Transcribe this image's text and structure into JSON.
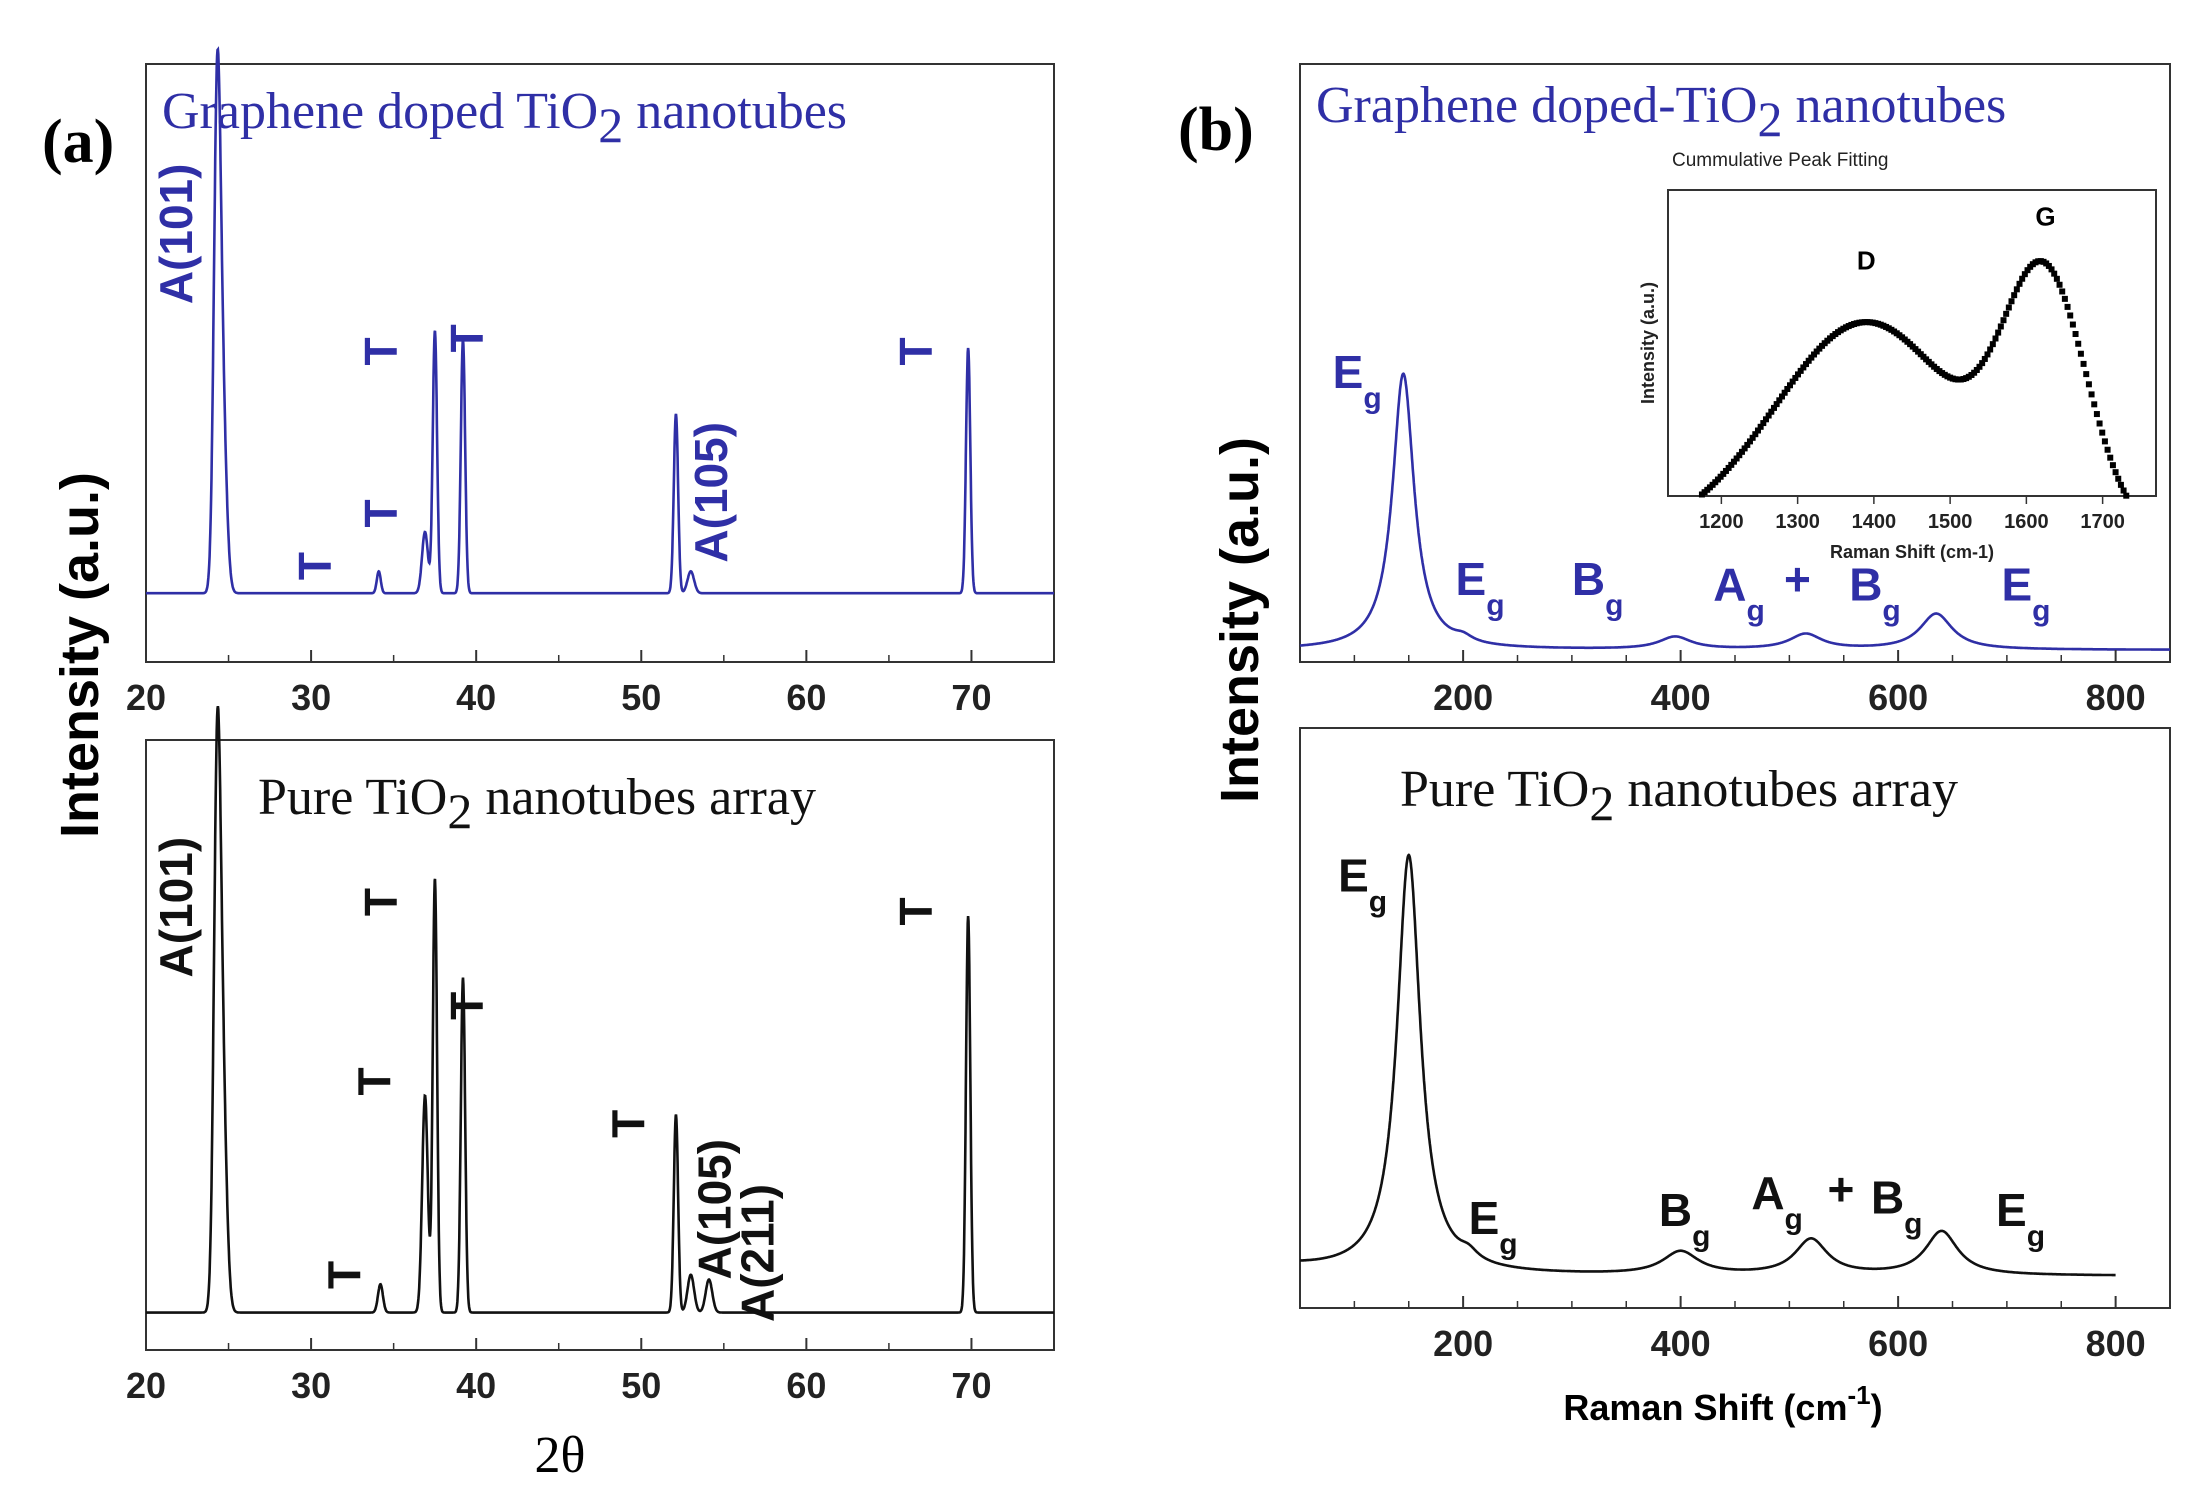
{
  "figure": {
    "panel_a_label": "(a)",
    "panel_b_label": "(b)"
  },
  "chart_data": [
    {
      "id": "a_top",
      "type": "line",
      "title": "Graphene doped TiO2 nanotubes",
      "title_main": "Graphene doped TiO",
      "title_sub": "2",
      "title_tail": " nanotubes",
      "color": "#2f2fa6",
      "xlabel": "",
      "ylabel": "Intensity (a.u.)",
      "xlim": [
        20,
        75
      ],
      "x_ticks": [
        20,
        30,
        40,
        50,
        60,
        70
      ],
      "baseline": 0.02,
      "peaks": [
        {
          "x": 24.3,
          "h": 1.0,
          "w": 0.2
        },
        {
          "x": 24.6,
          "h": 0.45,
          "w": 0.25
        },
        {
          "x": 34.1,
          "h": 0.05,
          "w": 0.12
        },
        {
          "x": 36.9,
          "h": 0.14,
          "w": 0.18
        },
        {
          "x": 37.5,
          "h": 0.6,
          "w": 0.13
        },
        {
          "x": 39.2,
          "h": 0.58,
          "w": 0.13
        },
        {
          "x": 52.1,
          "h": 0.41,
          "w": 0.13
        },
        {
          "x": 53.0,
          "h": 0.05,
          "w": 0.2
        },
        {
          "x": 69.8,
          "h": 0.56,
          "w": 0.13
        }
      ],
      "annotations": [
        {
          "text": "A(101)",
          "x": 22.8,
          "y": 0.68,
          "rot": true
        },
        {
          "text": "T",
          "x": 31.2,
          "y": 0.05,
          "rot": true
        },
        {
          "text": "T",
          "x": 35.2,
          "y": 0.17,
          "rot": true
        },
        {
          "text": "T",
          "x": 35.2,
          "y": 0.54,
          "rot": true
        },
        {
          "text": "T",
          "x": 40.4,
          "y": 0.57,
          "rot": true
        },
        {
          "text": "A(105)",
          "x": 55.2,
          "y": 0.09,
          "rot": true
        },
        {
          "text": "T",
          "x": 67.6,
          "y": 0.54,
          "rot": true
        }
      ]
    },
    {
      "id": "a_bottom",
      "type": "line",
      "title": "Pure TiO2 nanotubes array",
      "title_main": "Pure TiO",
      "title_sub": "2",
      "title_tail": " nanotubes array",
      "color": "#111111",
      "xlabel": "2θ",
      "ylabel": "Intensity (a.u.)",
      "xlim": [
        20,
        75
      ],
      "x_ticks": [
        20,
        30,
        40,
        50,
        60,
        70
      ],
      "baseline": 0.02,
      "peaks": [
        {
          "x": 24.3,
          "h": 1.0,
          "w": 0.2
        },
        {
          "x": 24.6,
          "h": 0.52,
          "w": 0.25
        },
        {
          "x": 34.2,
          "h": 0.06,
          "w": 0.15
        },
        {
          "x": 36.9,
          "h": 0.46,
          "w": 0.17
        },
        {
          "x": 37.5,
          "h": 0.92,
          "w": 0.13
        },
        {
          "x": 39.2,
          "h": 0.71,
          "w": 0.13
        },
        {
          "x": 52.1,
          "h": 0.42,
          "w": 0.13
        },
        {
          "x": 53.0,
          "h": 0.08,
          "w": 0.2
        },
        {
          "x": 54.1,
          "h": 0.07,
          "w": 0.2
        },
        {
          "x": 69.8,
          "h": 0.84,
          "w": 0.13
        }
      ],
      "annotations": [
        {
          "text": "A(101)",
          "x": 22.8,
          "y": 0.73,
          "rot": true
        },
        {
          "text": "T",
          "x": 33.0,
          "y": 0.07,
          "rot": true
        },
        {
          "text": "T",
          "x": 34.8,
          "y": 0.48,
          "rot": true
        },
        {
          "text": "T",
          "x": 35.2,
          "y": 0.86,
          "rot": true
        },
        {
          "text": "T",
          "x": 40.4,
          "y": 0.64,
          "rot": true
        },
        {
          "text": "T",
          "x": 50.2,
          "y": 0.39,
          "rot": true
        },
        {
          "text": "A(105)",
          "x": 55.4,
          "y": 0.09,
          "rot": true
        },
        {
          "text": "A(211)",
          "x": 58.0,
          "y": 0.0,
          "rot": true
        },
        {
          "text": "T",
          "x": 67.6,
          "y": 0.84,
          "rot": true
        }
      ]
    },
    {
      "id": "b_top",
      "type": "line",
      "title": "Graphene doped-TiO2 nanotubes",
      "title_main": "Graphene doped-TiO",
      "title_sub": "2",
      "title_tail": " nanotubes",
      "color": "#2f2fa6",
      "xlabel": "",
      "ylabel": "Intensity (a.u.)",
      "xlim": [
        50,
        850
      ],
      "x_ticks": [
        200,
        400,
        600,
        800
      ],
      "baseline": 0.0,
      "lorentz": [
        {
          "x": 145,
          "h": 1.0,
          "w": 12
        },
        {
          "x": 200,
          "h": 0.02,
          "w": 10
        },
        {
          "x": 395,
          "h": 0.045,
          "w": 18
        },
        {
          "x": 515,
          "h": 0.055,
          "w": 18
        },
        {
          "x": 635,
          "h": 0.13,
          "w": 18
        }
      ],
      "annotations": [
        {
          "text": "E",
          "sub": "g",
          "x": 80,
          "y": 0.95
        },
        {
          "text": "E",
          "sub": "g",
          "x": 193,
          "y": 0.2
        },
        {
          "text": "B",
          "sub": "g",
          "x": 300,
          "y": 0.2
        },
        {
          "text": "A",
          "sub": "g",
          "x": 430,
          "y": 0.18
        },
        {
          "text": "+",
          "sub": "",
          "x": 495,
          "y": 0.2
        },
        {
          "text": "B",
          "sub": "g",
          "x": 555,
          "y": 0.18
        },
        {
          "text": "E",
          "sub": "g",
          "x": 695,
          "y": 0.18
        }
      ]
    },
    {
      "id": "b_inset",
      "type": "scatter",
      "title": "Cummulative Peak Fitting",
      "xlabel": "Raman Shift (cm-1)",
      "ylabel": "Intensity (a.u.)",
      "xlim": [
        1130,
        1770
      ],
      "x_ticks": [
        1200,
        1300,
        1400,
        1500,
        1600,
        1700
      ],
      "points_from": 1150,
      "points_to": 1735,
      "peak_D": {
        "x": 1390,
        "h": 0.78,
        "w": 120
      },
      "peak_G": {
        "x": 1625,
        "h": 0.88,
        "w": 55
      },
      "annotations": [
        {
          "text": "D",
          "x": 1390,
          "y": 0.82
        },
        {
          "text": "G",
          "x": 1625,
          "y": 0.98
        }
      ]
    },
    {
      "id": "b_bottom",
      "type": "line",
      "title": "Pure TiO2 nanotubes array",
      "title_main": "Pure TiO",
      "title_sub": "2",
      "title_tail": " nanotubes array",
      "color": "#111111",
      "xlabel": "Raman Shift (cm",
      "xlabel_sup": "-1",
      "xlabel_tail": ")",
      "ylabel": "Intensity (a.u.)",
      "xlim": [
        50,
        850
      ],
      "x_ticks": [
        200,
        400,
        600,
        800
      ],
      "x_end": 800,
      "baseline": 0.0,
      "lorentz": [
        {
          "x": 150,
          "h": 1.0,
          "w": 13
        },
        {
          "x": 205,
          "h": 0.02,
          "w": 10
        },
        {
          "x": 400,
          "h": 0.055,
          "w": 20
        },
        {
          "x": 520,
          "h": 0.085,
          "w": 18
        },
        {
          "x": 640,
          "h": 0.105,
          "w": 18
        }
      ],
      "annotations": [
        {
          "text": "E",
          "sub": "g",
          "x": 85,
          "y": 0.92
        },
        {
          "text": "E",
          "sub": "g",
          "x": 205,
          "y": 0.1
        },
        {
          "text": "B",
          "sub": "g",
          "x": 380,
          "y": 0.12
        },
        {
          "text": "A",
          "sub": "g",
          "x": 465,
          "y": 0.16
        },
        {
          "text": "+",
          "sub": "",
          "x": 535,
          "y": 0.17
        },
        {
          "text": "B",
          "sub": "g",
          "x": 575,
          "y": 0.15
        },
        {
          "text": "E",
          "sub": "g",
          "x": 690,
          "y": 0.12
        }
      ]
    }
  ]
}
